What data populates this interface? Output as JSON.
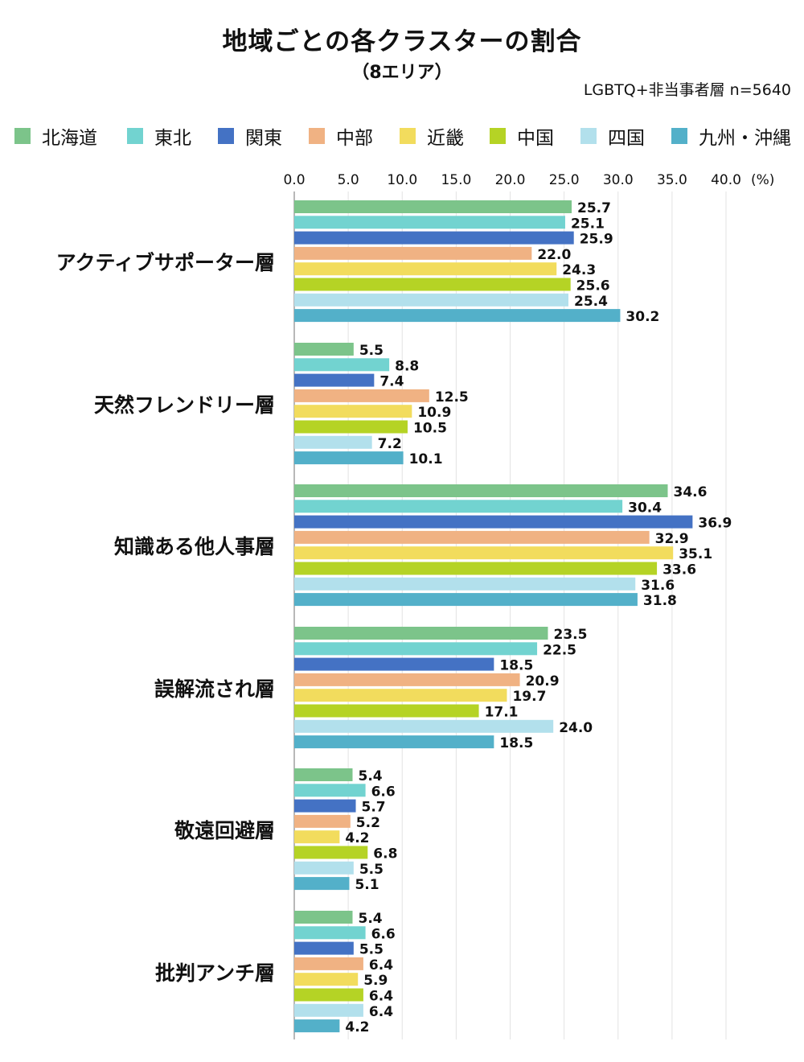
{
  "chart_data": {
    "type": "bar",
    "orientation": "horizontal",
    "title": "地域ごとの各クラスターの割合",
    "subtitle": "（8エリア）",
    "note": "LGBTQ+非当事者層 n=5640",
    "unit_label": "(%)",
    "xlim": [
      0,
      40
    ],
    "ticks": [
      "0.0",
      "5.0",
      "10.0",
      "15.0",
      "20.0",
      "25.0",
      "30.0",
      "35.0",
      "40.0"
    ],
    "tick_values": [
      0,
      5,
      10,
      15,
      20,
      25,
      30,
      35,
      40
    ],
    "grid": true,
    "legend_position": "top",
    "categories": [
      "アクティブサポーター層",
      "天然フレンドリー層",
      "知識ある他人事層",
      "誤解流され層",
      "敬遠回避層",
      "批判アンチ層"
    ],
    "series": [
      {
        "name": "北海道",
        "color": "#7cc48a",
        "values": [
          25.7,
          5.5,
          34.6,
          23.5,
          5.4,
          5.4
        ],
        "labels": [
          "25.7",
          "5.5",
          "34.6",
          "23.5",
          "5.4",
          "5.4"
        ]
      },
      {
        "name": "東北",
        "color": "#72d3d0",
        "values": [
          25.1,
          8.8,
          30.4,
          22.5,
          6.6,
          6.6
        ],
        "labels": [
          "25.1",
          "8.8",
          "30.4",
          "22.5",
          "6.6",
          "6.6"
        ]
      },
      {
        "name": "関東",
        "color": "#4472c4",
        "values": [
          25.9,
          7.4,
          36.9,
          18.5,
          5.7,
          5.5
        ],
        "labels": [
          "25.9",
          "7.4",
          "36.9",
          "18.5",
          "5.7",
          "5.5"
        ]
      },
      {
        "name": "中部",
        "color": "#f0b283",
        "values": [
          22.0,
          12.5,
          32.9,
          20.9,
          5.2,
          6.4
        ],
        "labels": [
          "22.0",
          "12.5",
          "32.9",
          "20.9",
          "5.2",
          "6.4"
        ]
      },
      {
        "name": "近畿",
        "color": "#f2dc5d",
        "values": [
          24.3,
          10.9,
          35.1,
          19.7,
          4.2,
          5.9
        ],
        "labels": [
          "24.3",
          "10.9",
          "35.1",
          "19.7",
          "4.2",
          "5.9"
        ]
      },
      {
        "name": "中国",
        "color": "#b5d325",
        "values": [
          25.6,
          10.5,
          33.6,
          17.1,
          6.8,
          6.4
        ],
        "labels": [
          "25.6",
          "10.5",
          "33.6",
          "17.1",
          "6.8",
          "6.4"
        ]
      },
      {
        "name": "四国",
        "color": "#b2e0ec",
        "values": [
          25.4,
          7.2,
          31.6,
          24.0,
          5.5,
          6.4
        ],
        "labels": [
          "25.4",
          "7.2",
          "31.6",
          "24.0",
          "5.5",
          "6.4"
        ]
      },
      {
        "name": "九州・沖縄",
        "color": "#53b0c9",
        "values": [
          30.2,
          10.1,
          31.8,
          18.5,
          5.1,
          4.2
        ],
        "labels": [
          "30.2",
          "10.1",
          "31.8",
          "18.5",
          "5.1",
          "4.2"
        ]
      }
    ]
  }
}
